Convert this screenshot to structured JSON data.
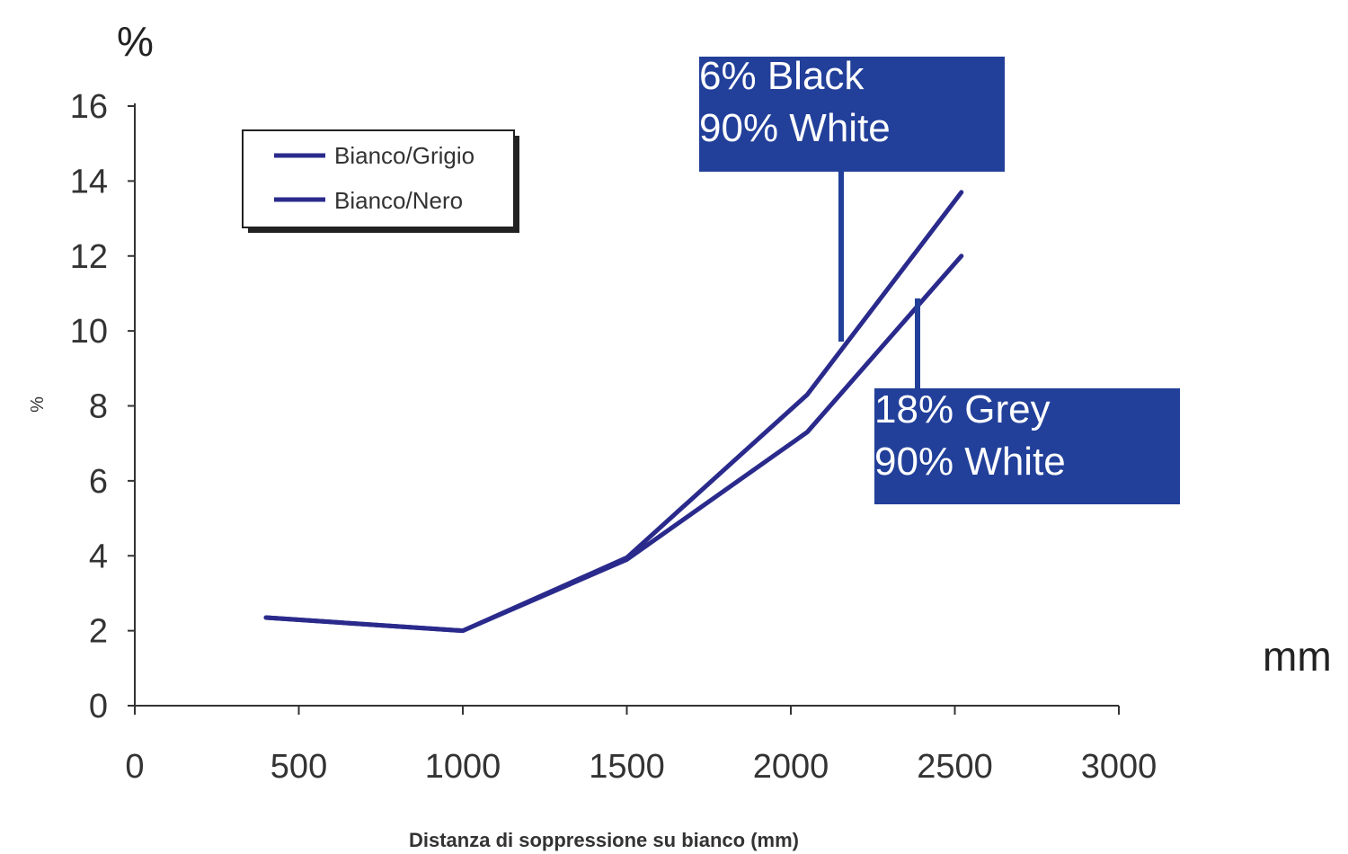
{
  "colors": {
    "series": "#2a2a8c",
    "callout_bg": "#22409a",
    "axis": "#333333"
  },
  "labels": {
    "top_unit": "%",
    "right_unit": "mm"
  },
  "chart_data": {
    "type": "line",
    "title": "",
    "xlabel": "Distanza di soppressione su bianco (mm)",
    "ylabel": "%",
    "xlim": [
      0,
      3000
    ],
    "ylim": [
      0,
      16
    ],
    "x_ticks": [
      "0",
      "500",
      "1000",
      "1500",
      "2000",
      "2500",
      "3000"
    ],
    "y_ticks": [
      "0",
      "2",
      "4",
      "6",
      "8",
      "10",
      "12",
      "14",
      "16"
    ],
    "grid": false,
    "legend": {
      "placement": "top-left"
    },
    "series": [
      {
        "name": "Bianco/Grigio",
        "x": [
          400,
          1000,
          1500,
          2050,
          2520
        ],
        "y": [
          2.35,
          2.0,
          3.9,
          7.3,
          12.0
        ]
      },
      {
        "name": "Bianco/Nero",
        "x": [
          400,
          1000,
          1500,
          2050,
          2520
        ],
        "y": [
          2.35,
          2.0,
          3.95,
          8.3,
          13.7
        ]
      }
    ],
    "annotations": [
      {
        "lines": [
          "6% Black",
          "90% White"
        ],
        "target_x": 2160,
        "target_y": 9.7
      },
      {
        "lines": [
          "18% Grey",
          "90% White"
        ],
        "target_x": 2390,
        "target_y": 8.6
      }
    ]
  }
}
